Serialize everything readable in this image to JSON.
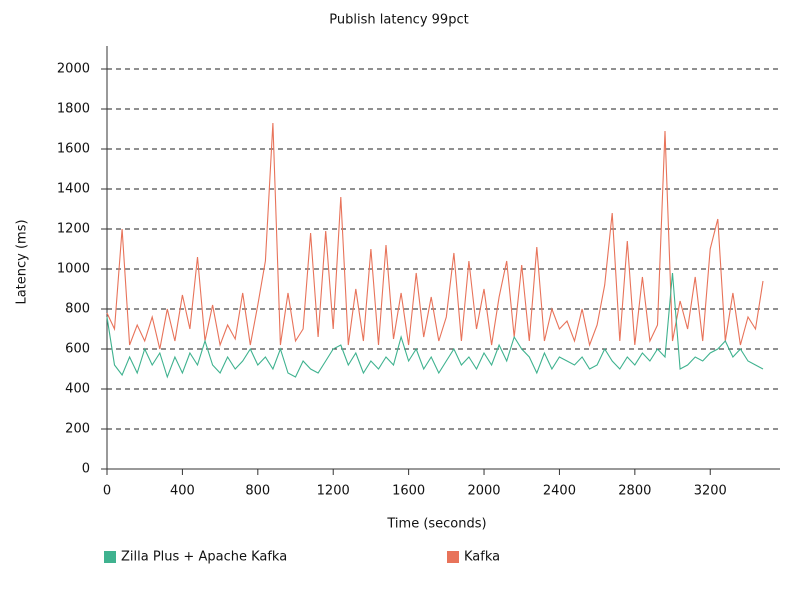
{
  "chart_data": {
    "type": "line",
    "title": "Publish latency 99pct",
    "x_label": "Time (seconds)",
    "y_label": "Latency (ms)",
    "x": [
      0,
      40,
      80,
      120,
      160,
      200,
      240,
      280,
      320,
      360,
      400,
      440,
      480,
      520,
      560,
      600,
      640,
      680,
      720,
      760,
      800,
      840,
      880,
      920,
      960,
      1000,
      1040,
      1080,
      1120,
      1160,
      1200,
      1240,
      1280,
      1320,
      1360,
      1400,
      1440,
      1480,
      1520,
      1560,
      1600,
      1640,
      1680,
      1720,
      1760,
      1800,
      1840,
      1880,
      1920,
      1960,
      2000,
      2040,
      2080,
      2120,
      2160,
      2200,
      2240,
      2280,
      2320,
      2360,
      2400,
      2440,
      2480,
      2520,
      2560,
      2600,
      2640,
      2680,
      2720,
      2760,
      2800,
      2840,
      2880,
      2920,
      2960,
      3000,
      3040,
      3080,
      3120,
      3160,
      3200,
      3240,
      3280,
      3320,
      3360,
      3400,
      3440,
      3480
    ],
    "series": [
      {
        "name": "Zilla Plus + Apache Kafka",
        "color": "#3fb28f",
        "values": [
          760,
          520,
          470,
          560,
          480,
          600,
          520,
          580,
          460,
          560,
          480,
          580,
          520,
          640,
          520,
          480,
          560,
          500,
          540,
          600,
          520,
          560,
          500,
          600,
          480,
          460,
          540,
          500,
          480,
          540,
          600,
          620,
          520,
          580,
          480,
          540,
          500,
          560,
          520,
          660,
          540,
          600,
          500,
          560,
          480,
          540,
          600,
          520,
          560,
          500,
          580,
          520,
          620,
          540,
          660,
          600,
          560,
          480,
          580,
          500,
          560,
          540,
          520,
          560,
          500,
          520,
          600,
          540,
          500,
          560,
          520,
          580,
          540,
          600,
          560,
          980,
          500,
          520,
          560,
          540,
          580,
          600,
          640,
          560,
          600,
          540,
          520,
          500
        ]
      },
      {
        "name": "Kafka",
        "color": "#e8735a",
        "values": [
          780,
          700,
          1200,
          620,
          720,
          640,
          760,
          600,
          800,
          640,
          870,
          700,
          1060,
          640,
          820,
          620,
          720,
          650,
          880,
          620,
          820,
          1040,
          1730,
          620,
          880,
          640,
          700,
          1180,
          660,
          1190,
          700,
          1360,
          620,
          900,
          640,
          1100,
          620,
          1120,
          650,
          880,
          620,
          980,
          660,
          860,
          640,
          760,
          1080,
          640,
          1040,
          700,
          900,
          620,
          860,
          1040,
          660,
          1020,
          640,
          1110,
          640,
          800,
          700,
          740,
          640,
          800,
          620,
          720,
          920,
          1280,
          640,
          1140,
          620,
          960,
          640,
          720,
          1690,
          640,
          840,
          700,
          960,
          640,
          1100,
          1250,
          640,
          880,
          620,
          760,
          700,
          940
        ]
      }
    ],
    "xlim": [
      0,
      3570
    ],
    "ylim": [
      0,
      2115
    ],
    "xticks": [
      0,
      400,
      800,
      1200,
      1600,
      2000,
      2400,
      2800,
      3200
    ],
    "yticks": [
      0,
      200,
      400,
      600,
      800,
      1000,
      1200,
      1400,
      1600,
      1800,
      2000
    ],
    "grid": true,
    "legend": "bottom"
  }
}
